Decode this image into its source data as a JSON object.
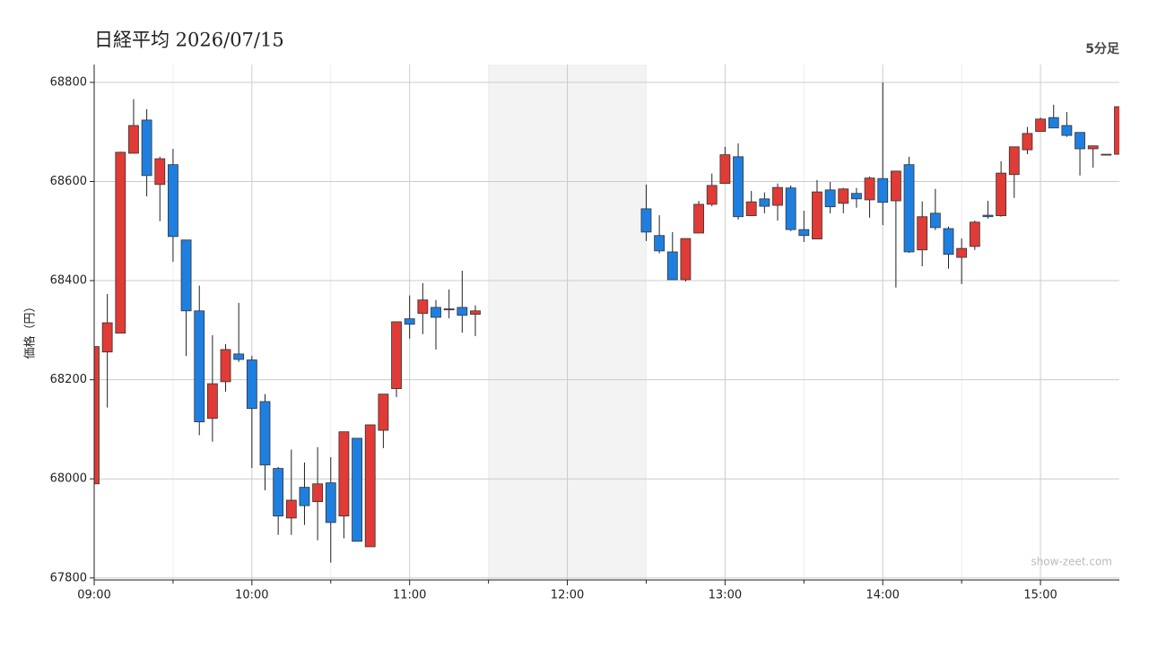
{
  "chart_data": {
    "type": "candlestick",
    "title": "日経平均 2026/07/15",
    "subtitle": "5分足",
    "y_label": "価格（円）",
    "watermark": "show-zeet.com",
    "up_color": "#e03b36",
    "down_color": "#1f7fe0",
    "grid": true,
    "xlim": [
      "09:00",
      "15:30"
    ],
    "xticks": [
      "09:00",
      "10:00",
      "11:00",
      "12:00",
      "13:00",
      "14:00",
      "15:00"
    ],
    "break": [
      "11:30",
      "12:30"
    ],
    "ylim": [
      67796,
      68836
    ],
    "yticks": [
      67800,
      68000,
      68200,
      68400,
      68600,
      68800
    ],
    "x": [
      "09:00",
      "09:05",
      "09:10",
      "09:15",
      "09:20",
      "09:25",
      "09:30",
      "09:35",
      "09:40",
      "09:45",
      "09:50",
      "09:55",
      "10:00",
      "10:05",
      "10:10",
      "10:15",
      "10:20",
      "10:25",
      "10:30",
      "10:35",
      "10:40",
      "10:45",
      "10:50",
      "10:55",
      "11:00",
      "11:05",
      "11:10",
      "11:15",
      "11:20",
      "11:25",
      "12:30",
      "12:35",
      "12:40",
      "12:45",
      "12:50",
      "12:55",
      "13:00",
      "13:05",
      "13:10",
      "13:15",
      "13:20",
      "13:25",
      "13:30",
      "13:35",
      "13:40",
      "13:45",
      "13:50",
      "13:55",
      "14:00",
      "14:05",
      "14:10",
      "14:15",
      "14:20",
      "14:25",
      "14:30",
      "14:35",
      "14:40",
      "14:45",
      "14:50",
      "14:55",
      "15:00",
      "15:05",
      "15:10",
      "15:15",
      "15:20",
      "15:25",
      "15:30"
    ],
    "open": [
      67990,
      68256,
      68294,
      68657,
      68724,
      68594,
      68634,
      68482,
      68339,
      68122,
      68196,
      68252,
      68240,
      68156,
      68021,
      67921,
      67983,
      67954,
      67992,
      67925,
      68082,
      67863,
      68098,
      68182,
      68323,
      68334,
      68346,
      68341,
      68346,
      68332,
      68545,
      68491,
      68458,
      68402,
      68496,
      68554,
      68596,
      68650,
      68531,
      68565,
      68552,
      68587,
      68503,
      68484,
      68583,
      68556,
      68576,
      68563,
      68606,
      68561,
      68634,
      68462,
      68536,
      68505,
      68447,
      68469,
      68532,
      68531,
      68614,
      68664,
      68701,
      68729,
      68713,
      68699,
      68666,
      68655,
      68655
    ],
    "high": [
      68267,
      68373,
      68660,
      68766,
      68746,
      68650,
      68666,
      68482,
      68390,
      68290,
      68272,
      68355,
      68248,
      68171,
      68024,
      68059,
      68033,
      68064,
      68044,
      68095,
      68082,
      68109,
      68171,
      68317,
      68370,
      68395,
      68361,
      68382,
      68420,
      68350,
      68594,
      68532,
      68498,
      68485,
      68561,
      68616,
      68670,
      68677,
      68581,
      68578,
      68596,
      68592,
      68541,
      68603,
      68599,
      68587,
      68587,
      68610,
      68800,
      68621,
      68650,
      68560,
      68585,
      68509,
      68485,
      68521,
      68561,
      68641,
      68670,
      68710,
      68729,
      68755,
      68740,
      68699,
      68672,
      68655,
      68751
    ],
    "low": [
      67990,
      68144,
      68294,
      68657,
      68570,
      68520,
      68438,
      68248,
      68088,
      68075,
      68176,
      68236,
      68022,
      67977,
      67887,
      67887,
      67907,
      67876,
      67831,
      67880,
      67874,
      67863,
      68062,
      68165,
      68283,
      68292,
      68261,
      68324,
      68295,
      68288,
      68480,
      68455,
      68402,
      68398,
      68496,
      68550,
      68596,
      68523,
      68531,
      68536,
      68521,
      68500,
      68478,
      68484,
      68536,
      68536,
      68547,
      68527,
      68512,
      68386,
      68456,
      68429,
      68502,
      68424,
      68393,
      68462,
      68525,
      68529,
      68567,
      68655,
      68701,
      68708,
      68690,
      68612,
      68628,
      68655,
      68655
    ],
    "close": [
      68267,
      68315,
      68659,
      68713,
      68612,
      68646,
      68489,
      68339,
      68115,
      68192,
      68261,
      68241,
      68142,
      68028,
      67925,
      67957,
      67946,
      67990,
      67912,
      68095,
      67874,
      68109,
      68171,
      68317,
      68312,
      68361,
      68326,
      68343,
      68330,
      68339,
      68498,
      68460,
      68402,
      68485,
      68554,
      68592,
      68654,
      68529,
      68559,
      68550,
      68588,
      68503,
      68491,
      68579,
      68549,
      68585,
      68565,
      68607,
      68558,
      68621,
      68458,
      68529,
      68507,
      68453,
      68465,
      68518,
      68529,
      68617,
      68670,
      68697,
      68726,
      68708,
      68693,
      68666,
      68672,
      68655,
      68751
    ]
  }
}
